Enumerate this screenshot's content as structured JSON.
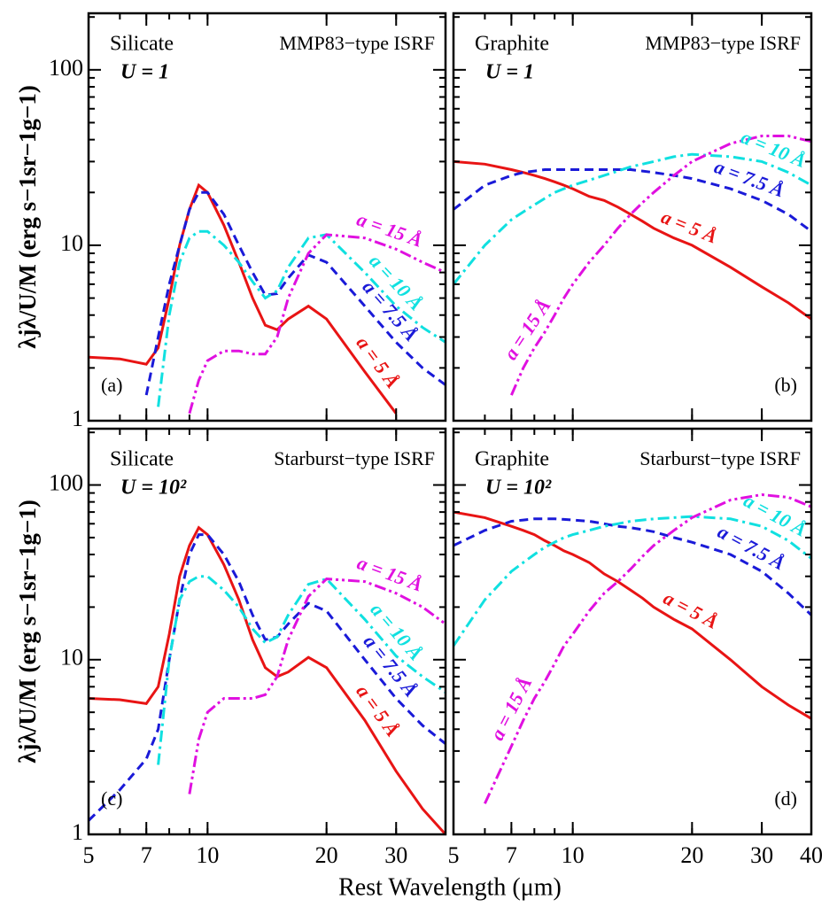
{
  "figure": {
    "xlabel": "Rest Wavelength (μm)"
  },
  "chart_data": [
    {
      "type": "line",
      "panel": "(a)",
      "material": "Silicate",
      "field": "U = 1",
      "isrf": "MMP83−type ISRF",
      "ylabel": "λjλ/U/M (erg s−1sr−1g−1)",
      "log_x": true,
      "log_y": true,
      "xlim": [
        5,
        40
      ],
      "ylim": [
        1,
        210
      ],
      "xticks": [
        5,
        7,
        10,
        20,
        30
      ],
      "yticks": [
        1,
        10,
        100
      ],
      "x": [
        5,
        6,
        7,
        7.5,
        8,
        8.5,
        9,
        9.5,
        10,
        11,
        12,
        13,
        14,
        15,
        16,
        18,
        20,
        25,
        30,
        35,
        40
      ],
      "series": [
        {
          "name": "a = 5 Å",
          "color": "#e81414",
          "style": "solid",
          "values": [
            2.3,
            2.25,
            2.1,
            2.6,
            5,
            10,
            16,
            22,
            20,
            13,
            8,
            5,
            3.5,
            3.3,
            3.8,
            4.5,
            3.8,
            1.9,
            1.1,
            null,
            null
          ]
        },
        {
          "name": "a = 7.5 Å",
          "color": "#1a1ad8",
          "style": "dashed",
          "values": [
            null,
            null,
            1.4,
            3,
            6,
            10,
            16,
            20,
            20,
            15,
            10,
            7,
            5.2,
            5.3,
            6.5,
            8.8,
            8,
            4.5,
            2.8,
            2,
            1.6
          ]
        },
        {
          "name": "a = 10 Å",
          "color": "#10e0e0",
          "style": "dashdot",
          "values": [
            null,
            null,
            null,
            1.2,
            4,
            8,
            11,
            12,
            12,
            10,
            8,
            6.2,
            5,
            5.5,
            7.5,
            11,
            11.5,
            7,
            4.5,
            3.4,
            2.8
          ]
        },
        {
          "name": "a = 15 Å",
          "color": "#e010e0",
          "style": "dashdotdot",
          "values": [
            null,
            null,
            null,
            null,
            null,
            null,
            1.1,
            1.7,
            2.2,
            2.5,
            2.5,
            2.4,
            2.4,
            3,
            5,
            9,
            11.5,
            11,
            9.5,
            8,
            7
          ]
        }
      ]
    },
    {
      "type": "line",
      "panel": "(b)",
      "material": "Graphite",
      "field": "U = 1",
      "isrf": "MMP83−type ISRF",
      "log_x": true,
      "log_y": true,
      "xlim": [
        5,
        40
      ],
      "ylim": [
        1,
        210
      ],
      "xticks": [
        5,
        7,
        10,
        20,
        30,
        40
      ],
      "yticks": [
        1,
        10,
        100
      ],
      "x": [
        5,
        6,
        7,
        7.5,
        8,
        8.5,
        9,
        9.5,
        10,
        11,
        12,
        13,
        14,
        15,
        16,
        18,
        20,
        25,
        30,
        35,
        40
      ],
      "series": [
        {
          "name": "a = 5 Å",
          "color": "#e81414",
          "style": "solid",
          "values": [
            30,
            29,
            27,
            26,
            25,
            24,
            23,
            22,
            21,
            19,
            18,
            16.5,
            15,
            13.7,
            12.5,
            11,
            10,
            7.5,
            5.8,
            4.7,
            3.8
          ]
        },
        {
          "name": "a = 7.5 Å",
          "color": "#1a1ad8",
          "style": "dashed",
          "values": [
            16,
            22,
            25,
            26,
            26.5,
            27,
            27,
            27,
            27,
            27,
            27,
            27,
            27,
            26.5,
            26,
            25,
            24,
            21,
            18,
            15,
            12
          ]
        },
        {
          "name": "a = 10 Å",
          "color": "#10e0e0",
          "style": "dashdot",
          "values": [
            6,
            10,
            14,
            15.5,
            17,
            18.5,
            20,
            21,
            22,
            23.5,
            25,
            26.5,
            28,
            29,
            30,
            32,
            33,
            32,
            30,
            26,
            22
          ]
        },
        {
          "name": "a = 15 Å",
          "color": "#e010e0",
          "style": "dashdotdot",
          "values": [
            null,
            null,
            1.4,
            2,
            2.6,
            3.2,
            4,
            5,
            6,
            8,
            10,
            12.5,
            15,
            17.5,
            20,
            25,
            30,
            38,
            42,
            42,
            39
          ]
        }
      ]
    },
    {
      "type": "line",
      "panel": "(c)",
      "material": "Silicate",
      "field": "U = 10²",
      "isrf": "Starburst−type ISRF",
      "ylabel": "λjλ/U/M (erg s−1sr−1g−1)",
      "log_x": true,
      "log_y": true,
      "xlim": [
        5,
        40
      ],
      "ylim": [
        1,
        210
      ],
      "xticks": [
        5,
        7,
        10,
        20,
        30
      ],
      "yticks": [
        1,
        10,
        100
      ],
      "x": [
        5,
        6,
        7,
        7.5,
        8,
        8.5,
        9,
        9.5,
        10,
        11,
        12,
        13,
        14,
        15,
        16,
        18,
        20,
        25,
        30,
        35,
        40
      ],
      "series": [
        {
          "name": "a = 5 Å",
          "color": "#e81414",
          "style": "solid",
          "values": [
            6,
            5.9,
            5.6,
            7,
            14,
            30,
            45,
            57,
            52,
            35,
            22,
            13,
            9,
            8,
            8.5,
            10.3,
            9,
            4.5,
            2.3,
            1.4,
            1
          ]
        },
        {
          "name": "a = 7.5 Å",
          "color": "#1a1ad8",
          "style": "dashed",
          "values": [
            1.2,
            1.8,
            2.7,
            4,
            10,
            22,
            40,
            52,
            52,
            40,
            28,
            18,
            13,
            13.5,
            16,
            21,
            19,
            10,
            6,
            4.2,
            3.3
          ]
        },
        {
          "name": "a = 10 Å",
          "color": "#10e0e0",
          "style": "dashdot",
          "values": [
            null,
            null,
            null,
            2.5,
            10,
            22,
            28,
            30,
            30,
            25,
            20,
            15,
            12.5,
            13.5,
            18,
            27,
            29,
            17,
            10.5,
            8,
            6.5
          ]
        },
        {
          "name": "a = 15 Å",
          "color": "#e010e0",
          "style": "dashdotdot",
          "values": [
            null,
            null,
            null,
            null,
            null,
            null,
            1.7,
            3.5,
            5,
            6,
            6,
            6,
            6.3,
            8,
            13,
            23,
            29,
            28,
            24,
            20,
            16
          ]
        }
      ]
    },
    {
      "type": "line",
      "panel": "(d)",
      "material": "Graphite",
      "field": "U = 10²",
      "isrf": "Starburst−type ISRF",
      "log_x": true,
      "log_y": true,
      "xlim": [
        5,
        40
      ],
      "ylim": [
        1,
        210
      ],
      "xticks": [
        5,
        7,
        10,
        20,
        30,
        40
      ],
      "yticks": [
        1,
        10,
        100
      ],
      "x": [
        5,
        6,
        7,
        7.5,
        8,
        8.5,
        9,
        9.5,
        10,
        11,
        12,
        13,
        14,
        15,
        16,
        18,
        20,
        25,
        30,
        35,
        40
      ],
      "series": [
        {
          "name": "a = 5 Å",
          "color": "#e81414",
          "style": "solid",
          "values": [
            70,
            65,
            58,
            55,
            52,
            48,
            45,
            42,
            40,
            36,
            31,
            28,
            25,
            22.5,
            20,
            17,
            15,
            10,
            7,
            5.5,
            4.6
          ]
        },
        {
          "name": "a = 7.5 Å",
          "color": "#1a1ad8",
          "style": "dashed",
          "values": [
            45,
            55,
            62,
            63,
            64,
            64,
            64,
            63.5,
            63,
            62,
            60,
            58,
            57,
            55.5,
            54,
            50,
            47,
            40,
            32,
            24,
            18
          ]
        },
        {
          "name": "a = 10 Å",
          "color": "#10e0e0",
          "style": "dashdot",
          "values": [
            12,
            22,
            32,
            36,
            40,
            44,
            47,
            50,
            52,
            55,
            58,
            60,
            62,
            63,
            64,
            65,
            66,
            64,
            58,
            48,
            38
          ]
        },
        {
          "name": "a = 15 Å",
          "color": "#e010e0",
          "style": "dashdotdot",
          "values": [
            null,
            1.5,
            3.2,
            4.5,
            6,
            7.5,
            9.5,
            12,
            14,
            19,
            24,
            28,
            33,
            39,
            45,
            55,
            65,
            82,
            88,
            85,
            75
          ]
        }
      ]
    }
  ]
}
